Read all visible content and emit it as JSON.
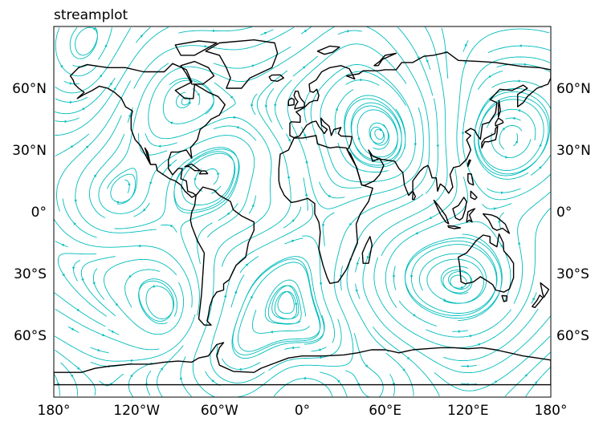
{
  "title": "streamplot",
  "map": {
    "projection": "PlateCarree",
    "extent": {
      "lon": [
        -180,
        180
      ],
      "lat": [
        -90,
        90
      ]
    },
    "stream_color": "#00bcbc",
    "coast_color": "#000000",
    "x_ticks": [
      {
        "value": -180,
        "label": "180°"
      },
      {
        "value": -120,
        "label": "120°W"
      },
      {
        "value": -60,
        "label": "60°W"
      },
      {
        "value": 0,
        "label": "0°"
      },
      {
        "value": 60,
        "label": "60°E"
      },
      {
        "value": 120,
        "label": "120°E"
      },
      {
        "value": 180,
        "label": "180°"
      }
    ],
    "y_ticks": [
      {
        "value": 60,
        "label": "60°N"
      },
      {
        "value": 30,
        "label": "30°N"
      },
      {
        "value": 0,
        "label": "0°"
      },
      {
        "value": -30,
        "label": "30°S"
      },
      {
        "value": -60,
        "label": "60°S"
      }
    ]
  }
}
